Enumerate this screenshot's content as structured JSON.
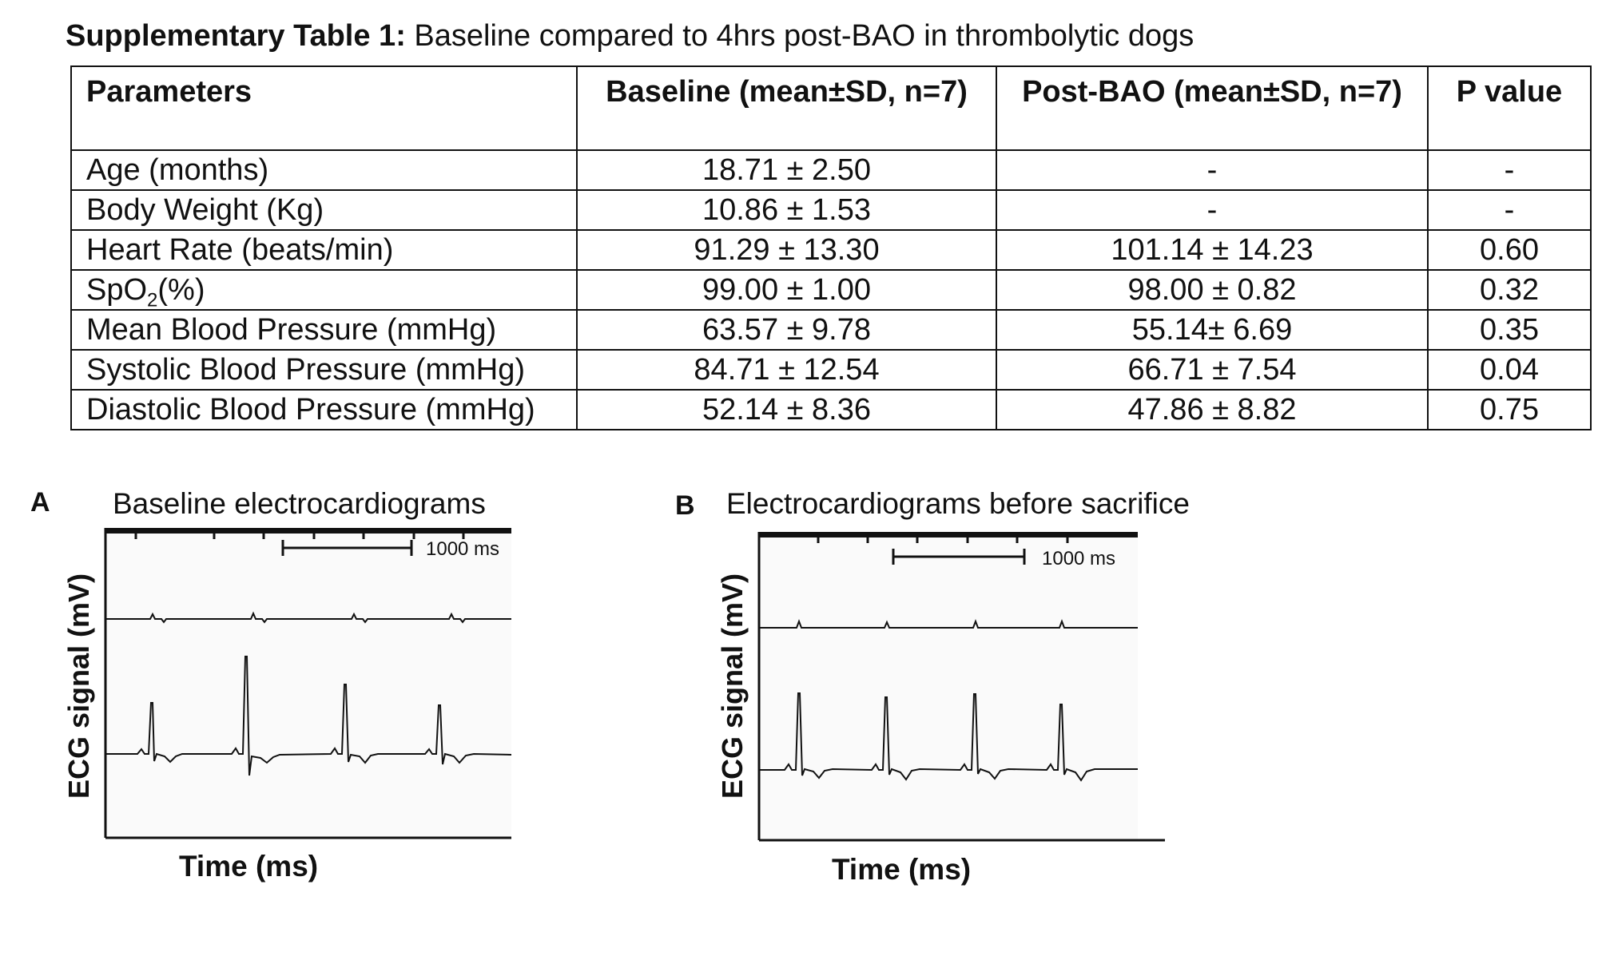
{
  "caption": {
    "bold": "Supplementary Table 1:",
    "text": "Baseline compared to 4hrs post-BAO in thrombolytic dogs"
  },
  "table": {
    "headers": [
      "Parameters",
      "Baseline (mean±SD, n=7)",
      "Post-BAO (mean±SD, n=7)",
      "P value"
    ],
    "rows": [
      {
        "param": "Age (months)",
        "baseline": "18.71 ± 2.50",
        "post": "-",
        "p": "-"
      },
      {
        "param": "Body Weight (Kg)",
        "baseline": "10.86 ± 1.53",
        "post": "-",
        "p": "-"
      },
      {
        "param": "Heart Rate (beats/min)",
        "baseline": "91.29 ± 13.30",
        "post": "101.14 ± 14.23",
        "p": "0.60"
      },
      {
        "param": "SpO2(%)",
        "baseline": "99.00 ± 1.00",
        "post": "98.00 ± 0.82",
        "p": "0.32"
      },
      {
        "param": "Mean Blood Pressure (mmHg)",
        "baseline": "63.57 ± 9.78",
        "post": "55.14± 6.69",
        "p": "0.35"
      },
      {
        "param": "Systolic Blood Pressure (mmHg)",
        "baseline": "84.71 ± 12.54",
        "post": "66.71 ± 7.54",
        "p": "0.04"
      },
      {
        "param": "Diastolic Blood Pressure (mmHg)",
        "baseline": "52.14 ± 8.36",
        "post": "47.86 ± 8.82",
        "p": "0.75"
      }
    ]
  },
  "panels": [
    {
      "letter": "A",
      "title": "Baseline electrocardiograms",
      "ylabel": "ECG signal (mV)",
      "xlabel": "Time (ms)",
      "scale_label": "1000 ms"
    },
    {
      "letter": "B",
      "title": "Electrocardiograms before sacrifice",
      "ylabel": "ECG signal (mV)",
      "xlabel": "Time (ms)",
      "scale_label": "1000 ms"
    }
  ]
}
